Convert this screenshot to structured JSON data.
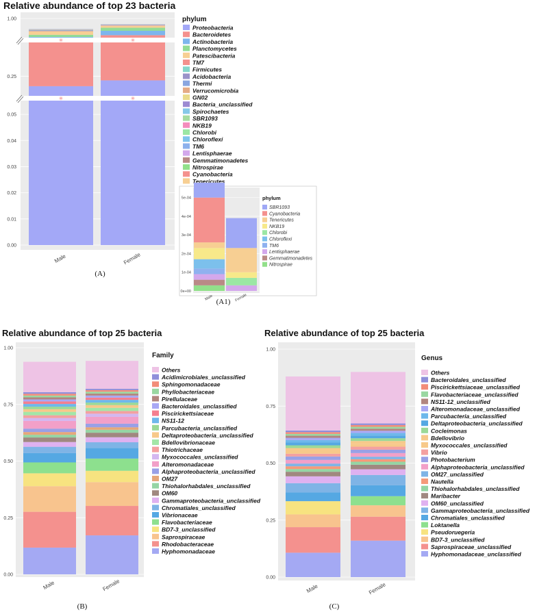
{
  "chart_data": [
    {
      "id": "A",
      "panel_label": "(A)",
      "type": "bar",
      "title": "Relative abundance of top 23 bacteria",
      "legend_title": "phylum",
      "categories": [
        "Male",
        "Female"
      ],
      "y_ticks": [
        "0.00",
        "0.01",
        "0.02",
        "0.03",
        "0.04",
        "0.05",
        "0.25",
        "1.00"
      ],
      "y_breaks": [
        [
          0.06,
          0.2
        ],
        [
          0.32,
          0.9
        ]
      ],
      "legend": [
        "Proteobacteria",
        "Bacteroidetes",
        "Actinobacteria",
        "Planctomycetes",
        "Patescibacteria",
        "TM7",
        "Firmicutes",
        "Acidobacteria",
        "Thermi",
        "Verrucomicrobia",
        "GN02",
        "Bacteria_unclassified",
        "Spirochaetes",
        "SBR1093",
        "NKB19",
        "Chlorobi",
        "Chloroflexi",
        "TM6",
        "Lentisphaerae",
        "Gemmatimonadetes",
        "Nitrospirae",
        "Cyanobacteria",
        "Tenericutes"
      ],
      "colors": [
        "#a3a8f7",
        "#f4918e",
        "#7db6ed",
        "#92dc95",
        "#f7cf93",
        "#f4918e",
        "#86d7cb",
        "#9a93c9",
        "#8aa6e0",
        "#e5ab86",
        "#eadb8c",
        "#9c8ad2",
        "#86c8e8",
        "#a6dba0",
        "#f48cbc",
        "#9be7a4",
        "#80c4ec",
        "#8cb1ec",
        "#d3a8ec",
        "#b98a86",
        "#92e08a",
        "#f4918e",
        "#f7cf93"
      ],
      "series": [
        {
          "name": "Proteobacteria",
          "values": [
            0.7003,
            0.726
          ]
        },
        {
          "name": "Bacteroidetes",
          "values": [
            0.2,
            0.2
          ]
        },
        {
          "name": "Actinobacteria",
          "values": [
            0.018,
            0.0195
          ]
        },
        {
          "name": "Planctomycetes",
          "values": [
            0.0095,
            0.0135
          ]
        },
        {
          "name": "Patescibacteria",
          "values": [
            0.0145,
            0.0085
          ]
        },
        {
          "name": "TM7",
          "values": [
            0.0023,
            0.0018
          ]
        },
        {
          "name": "Firmicutes",
          "values": [
            0.002,
            0.001
          ]
        },
        {
          "name": "Acidobacteria",
          "values": [
            0.0018,
            0.0012
          ]
        },
        {
          "name": "Thermi",
          "values": [
            0.0012,
            0.0008
          ]
        },
        {
          "name": "Verrucomicrobia",
          "values": [
            0.001,
            0.0008
          ]
        },
        {
          "name": "GN02",
          "values": [
            0.0008,
            0.0006
          ]
        },
        {
          "name": "Bacteria_unclassified",
          "values": [
            0.0008,
            0.0006
          ]
        },
        {
          "name": "Spirochaetes",
          "values": [
            0.0007,
            0.0005
          ]
        },
        {
          "name": "SBR1093",
          "values": [
            5e-05,
            1.5e-05
          ]
        },
        {
          "name": "NKB19",
          "values": [
            3e-05,
            3e-05
          ]
        },
        {
          "name": "Chlorobi",
          "values": [
            6e-05,
            5e-05
          ]
        },
        {
          "name": "Chloroflexi",
          "values": [
            2e-05,
            2e-05
          ]
        },
        {
          "name": "TM6",
          "values": [
            2e-05,
            1e-05
          ]
        },
        {
          "name": "Lentisphaerae",
          "values": [
            3e-05,
            2e-05
          ]
        },
        {
          "name": "Gemmatimonadetes",
          "values": [
            2e-05,
            1e-05
          ]
        },
        {
          "name": "Nitrospirae",
          "values": [
            1e-05,
            1e-05
          ]
        },
        {
          "name": "Cyanobacteria",
          "values": [
            0.00024,
            1e-05
          ]
        },
        {
          "name": "Tenericutes",
          "values": [
            1e-05,
            2e-05
          ]
        }
      ]
    },
    {
      "id": "A1",
      "panel_label": "(A1)",
      "type": "bar",
      "title": "",
      "legend_title": "phylum",
      "categories": [
        "Male",
        "Female"
      ],
      "y_ticks": [
        "0e+00",
        "1e-04",
        "2e-04",
        "3e-04",
        "4e-04",
        "5e-04"
      ],
      "ylim": [
        0,
        0.00055
      ],
      "legend": [
        "SBR1093",
        "Cyanobacteria",
        "Tenericutes",
        "NKB19",
        "Chlorobi",
        "Chloroflexi",
        "TM6",
        "Lentisphaerae",
        "Gemmatimonadetes",
        "Nitrospirae"
      ],
      "colors": [
        "#9fa8f5",
        "#f4918e",
        "#f7cf93",
        "#f7e98a",
        "#9be7a4",
        "#7cc0ec",
        "#8fb1ef",
        "#d3a8ec",
        "#b98a86",
        "#92e08a"
      ],
      "series": [
        {
          "name": "Nitrospirae",
          "values": [
            3e-05,
            0.0
          ]
        },
        {
          "name": "Gemmatimonadetes",
          "values": [
            3e-05,
            0.0
          ]
        },
        {
          "name": "Lentisphaerae",
          "values": [
            3e-05,
            3e-05
          ]
        },
        {
          "name": "TM6",
          "values": [
            3e-05,
            0.0
          ]
        },
        {
          "name": "Chloroflexi",
          "values": [
            5e-05,
            0.0
          ]
        },
        {
          "name": "Chlorobi",
          "values": [
            0.0,
            4e-05
          ]
        },
        {
          "name": "NKB19",
          "values": [
            6e-05,
            3e-05
          ]
        },
        {
          "name": "Tenericutes",
          "values": [
            3e-05,
            0.00013
          ]
        },
        {
          "name": "Cyanobacteria",
          "values": [
            0.00024,
            0.0
          ]
        },
        {
          "name": "SBR1093",
          "values": [
            8e-05,
            0.00016
          ]
        }
      ]
    },
    {
      "id": "B",
      "panel_label": "(B)",
      "type": "bar",
      "title": "Relative abundance of top 25 bacteria",
      "legend_title": "Family",
      "categories": [
        "Male",
        "Female"
      ],
      "y_ticks": [
        "0.00",
        "0.25",
        "0.50",
        "0.75",
        "1.00"
      ],
      "ylim": [
        0,
        1
      ],
      "legend": [
        "Others",
        "Acidimicrobiales_unclassified",
        "Sphingomonadaceae",
        "Phyllobacteriaceae",
        "Pirellulaceae",
        "Bacteroidales_unclassified",
        "Piscirickettsiaceae",
        "NS11-12",
        "Parcubacteria_unclassified",
        "Deltaproteobacteria_unclassified",
        "Bdellovibrionaceae",
        "Thiotrichaceae",
        "Myxococcales_unclassified",
        "Alteromonadaceae",
        "Alphaproteobacteria_unclassified",
        "OM27",
        "Thiohalorhabdales_unclassified",
        "OM60",
        "Gammaproteobacteria_unclassified",
        "Chromatiales_unclassified",
        "Vibrionaceae",
        "Flavobacteriaceae",
        "BD7-3_unclassified",
        "Saprospiraceae",
        "Rhodobacteraceae",
        "Hyphomonadaceae"
      ],
      "colors": [
        "#eec3e5",
        "#8f8fda",
        "#f28d79",
        "#9ad7a1",
        "#b2867f",
        "#a9a8f4",
        "#f47f8f",
        "#6eb8eb",
        "#9bd997",
        "#f7c98a",
        "#a3e6a7",
        "#f4a0a0",
        "#d4b7f0",
        "#f2a0c8",
        "#99a0e6",
        "#e6a77a",
        "#95d5a4",
        "#a08880",
        "#dfb1f0",
        "#7fb4e6",
        "#55a8e3",
        "#8de08e",
        "#f7e380",
        "#f8c48e",
        "#f4918e",
        "#a4a9f3"
      ],
      "series": [
        {
          "name": "Hyphomonadaceae",
          "values": [
            0.118,
            0.172
          ]
        },
        {
          "name": "Rhodobacteraceae",
          "values": [
            0.158,
            0.13
          ]
        },
        {
          "name": "Saprospiraceae",
          "values": [
            0.113,
            0.105
          ]
        },
        {
          "name": "BD7-3_unclassified",
          "values": [
            0.057,
            0.05
          ]
        },
        {
          "name": "Flavobacteriaceae",
          "values": [
            0.048,
            0.054
          ]
        },
        {
          "name": "Vibrionaceae",
          "values": [
            0.041,
            0.047
          ]
        },
        {
          "name": "Chromatiales_unclassified",
          "values": [
            0.028,
            0.025
          ]
        },
        {
          "name": "Gammaproteobacteria_unclassified",
          "values": [
            0.021,
            0.022
          ]
        },
        {
          "name": "OM60",
          "values": [
            0.02,
            0.02
          ]
        },
        {
          "name": "Thiohalorhabdales_unclassified",
          "values": [
            0.012,
            0.013
          ]
        },
        {
          "name": "OM27",
          "values": [
            0.012,
            0.011
          ]
        },
        {
          "name": "Alphaproteobacteria_unclassified",
          "values": [
            0.015,
            0.016
          ]
        },
        {
          "name": "Alteromonadaceae",
          "values": [
            0.034,
            0.03
          ]
        },
        {
          "name": "Myxococcales_unclassified",
          "values": [
            0.013,
            0.014
          ]
        },
        {
          "name": "Thiotrichaceae",
          "values": [
            0.012,
            0.012
          ]
        },
        {
          "name": "Bdellovibrionaceae",
          "values": [
            0.015,
            0.014
          ]
        },
        {
          "name": "Deltaproteobacteria_unclassified",
          "values": [
            0.012,
            0.012
          ]
        },
        {
          "name": "Parcubacteria_unclassified",
          "values": [
            0.011,
            0.011
          ]
        },
        {
          "name": "NS11-12",
          "values": [
            0.012,
            0.012
          ]
        },
        {
          "name": "Piscirickettsiaceae",
          "values": [
            0.011,
            0.01
          ]
        },
        {
          "name": "Bacteroidales_unclassified",
          "values": [
            0.009,
            0.009
          ]
        },
        {
          "name": "Pirellulaceae",
          "values": [
            0.009,
            0.009
          ]
        },
        {
          "name": "Phyllobacteriaceae",
          "values": [
            0.008,
            0.008
          ]
        },
        {
          "name": "Sphingomonadaceae",
          "values": [
            0.008,
            0.007
          ]
        },
        {
          "name": "Acidimicrobiales_unclassified",
          "values": [
            0.007,
            0.006
          ]
        },
        {
          "name": "Others",
          "values": [
            0.134,
            0.123
          ]
        }
      ]
    },
    {
      "id": "C",
      "panel_label": "(C)",
      "type": "bar",
      "title": "Relative abundance of top 25 bacteria",
      "legend_title": "Genus",
      "categories": [
        "Male",
        "Female"
      ],
      "y_ticks": [
        "0.00",
        "0.25",
        "0.50",
        "0.75",
        "1.00"
      ],
      "ylim": [
        0,
        1
      ],
      "legend": [
        "Others",
        "Bacteroidales_unclassified",
        "Piscirickettsiaceae_unclassified",
        "Flavobacteriaceae_unclassified",
        "NS11-12_unclassified",
        "Alteromonadaceae_unclassified",
        "Parcubacteria_unclassified",
        "Deltaproteobacteria_unclassified",
        "Cocleimonas",
        "Bdellovibrio",
        "Myxococcales_unclassified",
        "Vibrio",
        "Photobacterium",
        "Alphaproteobacteria_unclassified",
        "OM27_unclassified",
        "Nautella",
        "Thiohalorhabdales_unclassified",
        "Maribacter",
        "OM60_unclassified",
        "Gammaproteobacteria_unclassified",
        "Chromatiales_unclassified",
        "Loktanella",
        "Pseudoruegeria",
        "BD7-3_unclassified",
        "Saprospiraceae_unclassified",
        "Hyphomonadaceae_unclassified"
      ],
      "colors": [
        "#eec3e5",
        "#8f8fda",
        "#f28d79",
        "#9ad7a1",
        "#b2867f",
        "#a9a8f4",
        "#6eb8eb",
        "#55a8e3",
        "#9bd997",
        "#f7c98a",
        "#f7c98a",
        "#f4a0a0",
        "#99a0e6",
        "#f2a0c8",
        "#7fb4e6",
        "#f59a7a",
        "#95d5a4",
        "#a08880",
        "#dfb1f0",
        "#7fb4e6",
        "#55a8e3",
        "#8de08e",
        "#f7e380",
        "#f8c48e",
        "#f4918e",
        "#a4a9f3"
      ],
      "series": [
        {
          "name": "Hyphomonadaceae_unclassified",
          "values": [
            0.107,
            0.16
          ]
        },
        {
          "name": "Saprospiraceae_unclassified",
          "values": [
            0.112,
            0.105
          ]
        },
        {
          "name": "BD7-3_unclassified",
          "values": [
            0.056,
            0.05
          ]
        },
        {
          "name": "Pseudoruegeria",
          "values": [
            0.058,
            0.0
          ]
        },
        {
          "name": "Loktanella",
          "values": [
            0.0,
            0.04
          ]
        },
        {
          "name": "Chromatiales_unclassified",
          "values": [
            0.038,
            0.048
          ]
        },
        {
          "name": "Gammaproteobacteria_unclassified",
          "values": [
            0.041,
            0.045
          ]
        },
        {
          "name": "OM60_unclassified",
          "values": [
            0.03,
            0.025
          ]
        },
        {
          "name": "Maribacter",
          "values": [
            0.02,
            0.02
          ]
        },
        {
          "name": "Thiohalorhabdales_unclassified",
          "values": [
            0.012,
            0.013
          ]
        },
        {
          "name": "Nautella",
          "values": [
            0.012,
            0.011
          ]
        },
        {
          "name": "OM27_unclassified",
          "values": [
            0.012,
            0.011
          ]
        },
        {
          "name": "Alphaproteobacteria_unclassified",
          "values": [
            0.016,
            0.016
          ]
        },
        {
          "name": "Photobacterium",
          "values": [
            0.015,
            0.015
          ]
        },
        {
          "name": "Vibrio",
          "values": [
            0.012,
            0.013
          ]
        },
        {
          "name": "Myxococcales_unclassified",
          "values": [
            0.013,
            0.013
          ]
        },
        {
          "name": "Bdellovibrio",
          "values": [
            0.012,
            0.012
          ]
        },
        {
          "name": "Cocleimonas",
          "values": [
            0.012,
            0.012
          ]
        },
        {
          "name": "Deltaproteobacteria_unclassified",
          "values": [
            0.012,
            0.012
          ]
        },
        {
          "name": "Parcubacteria_unclassified",
          "values": [
            0.011,
            0.011
          ]
        },
        {
          "name": "Alteromonadaceae_unclassified",
          "values": [
            0.01,
            0.01
          ]
        },
        {
          "name": "NS11-12_unclassified",
          "values": [
            0.009,
            0.009
          ]
        },
        {
          "name": "Flavobacteriaceae_unclassified",
          "values": [
            0.008,
            0.008
          ]
        },
        {
          "name": "Piscirickettsiaceae_unclassified",
          "values": [
            0.008,
            0.008
          ]
        },
        {
          "name": "Bacteroidales_unclassified",
          "values": [
            0.007,
            0.007
          ]
        },
        {
          "name": "Others",
          "values": [
            0.237,
            0.226
          ]
        }
      ]
    }
  ]
}
